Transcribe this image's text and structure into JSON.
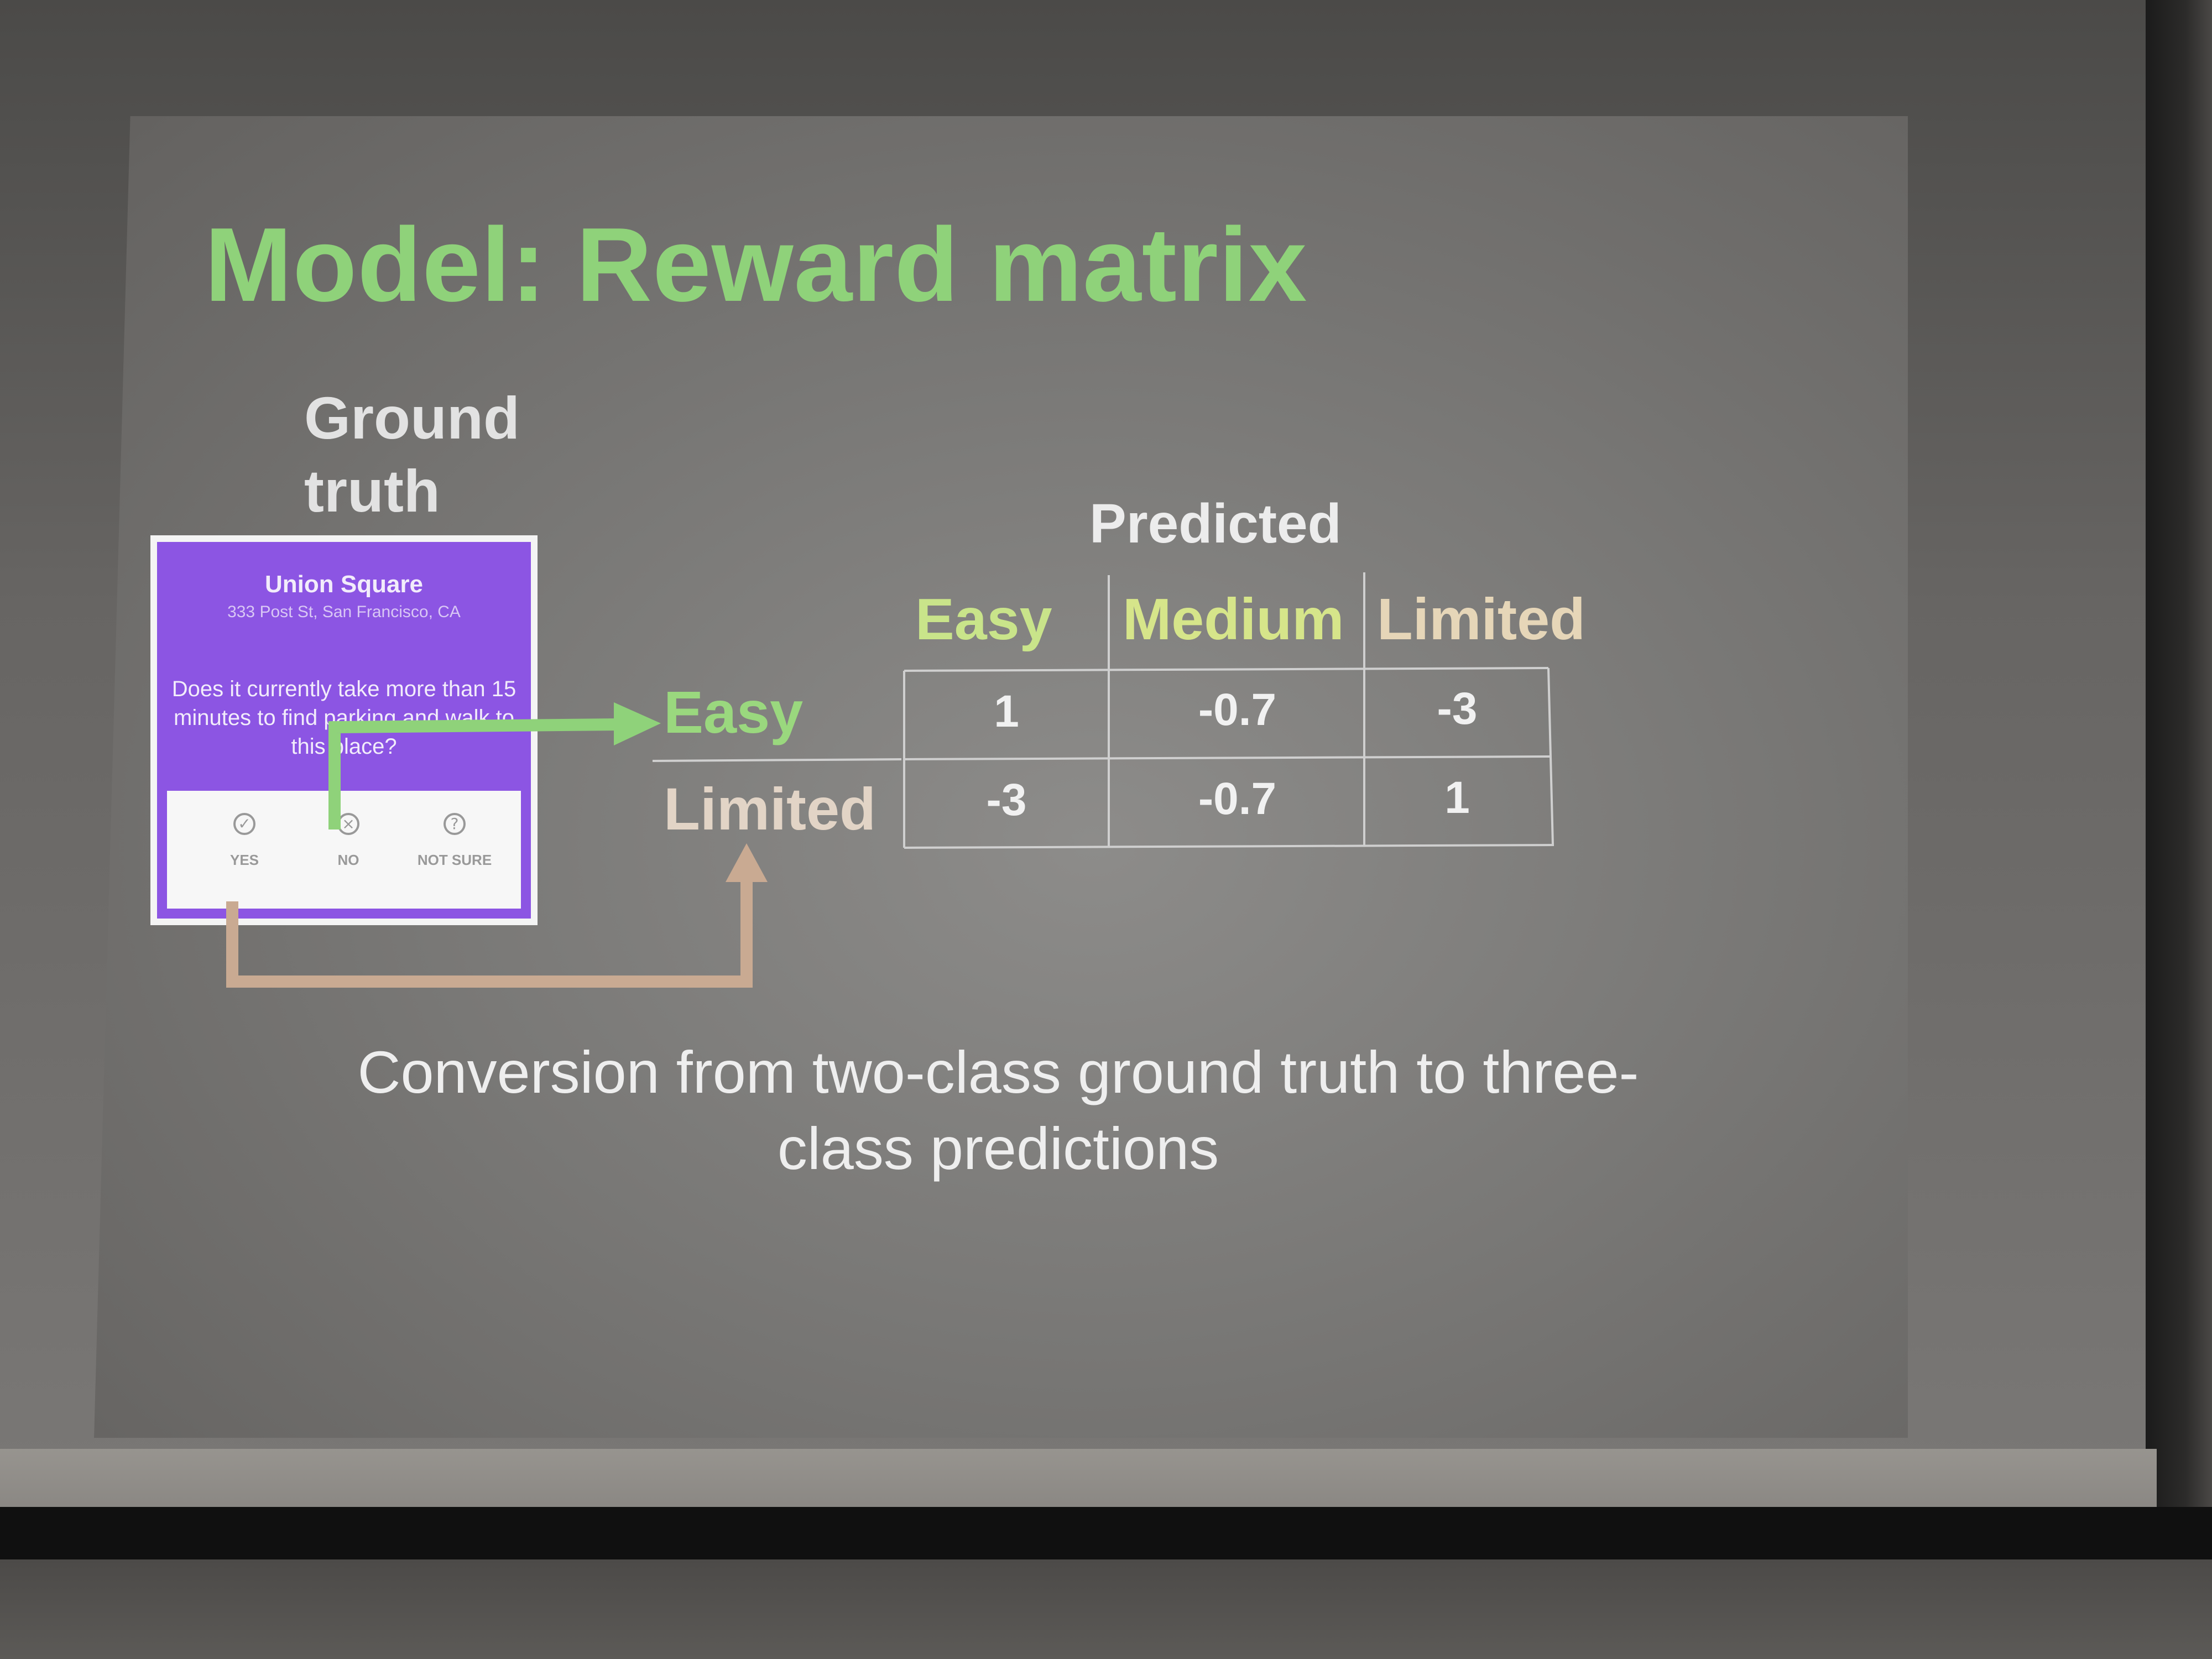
{
  "slide": {
    "title": "Model: Reward matrix",
    "ground_truth_label": [
      "Ground",
      "truth"
    ],
    "caption": [
      "Conversion from two-class ground truth to three-",
      "class predictions"
    ],
    "colors": {
      "title": "#8fd27a",
      "arrow_green": "#8fd27a",
      "arrow_tan": "#c9aa92",
      "card_purple": "#8c55e3"
    }
  },
  "card": {
    "title": "Union Square",
    "address": "333 Post St, San Francisco, CA",
    "question": "Does it currently take more than 15 minutes to find parking and walk to this place?",
    "options": [
      {
        "label": "YES",
        "icon": "check-circle-icon"
      },
      {
        "label": "NO",
        "icon": "x-circle-icon"
      },
      {
        "label": "NOT SURE",
        "icon": "question-circle-icon"
      }
    ]
  },
  "matrix": {
    "predicted_label": "Predicted",
    "columns": [
      "Easy",
      "Medium",
      "Limited"
    ],
    "rows": [
      {
        "label": "Easy",
        "values": [
          "1",
          "-0.7",
          "-3"
        ]
      },
      {
        "label": "Limited",
        "values": [
          "-3",
          "-0.7",
          "1"
        ]
      }
    ]
  }
}
